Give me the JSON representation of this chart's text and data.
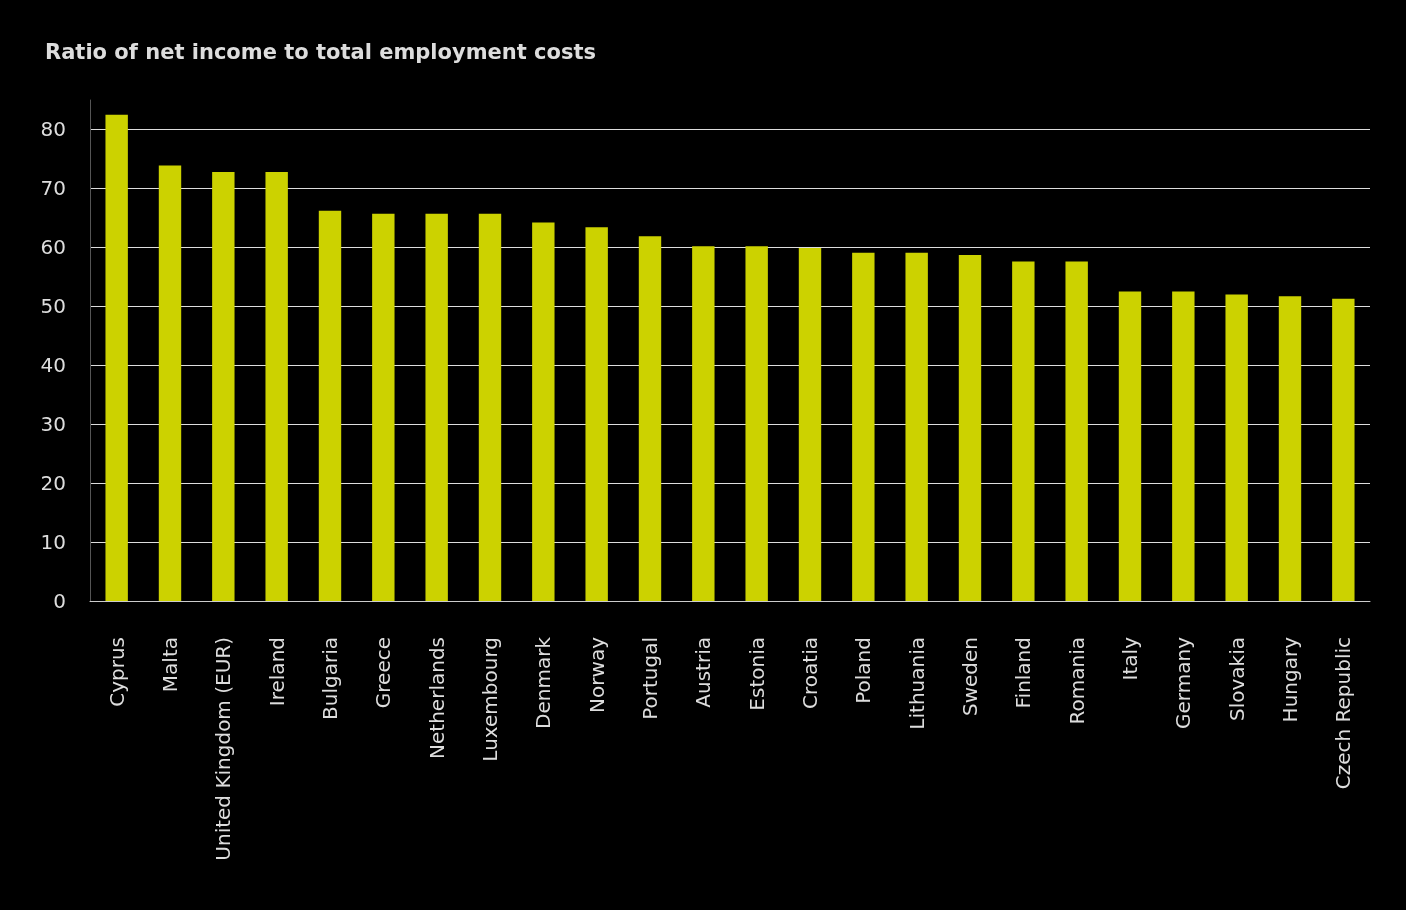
{
  "chart_data": {
    "type": "bar",
    "title": "Ratio of net income to total employment costs",
    "categories": [
      "Cyprus",
      "Malta",
      "United Kingdom (EUR)",
      "Ireland",
      "Bulgaria",
      "Greece",
      "Netherlands",
      "Luxembourg",
      "Denmark",
      "Norway",
      "Portugal",
      "Austria",
      "Estonia",
      "Croatia",
      "Poland",
      "Lithuania",
      "Sweden",
      "Finland",
      "Romania",
      "Italy",
      "Germany",
      "Slovakia",
      "Hungary",
      "Czech Republic"
    ],
    "values": [
      82.5,
      73.9,
      72.8,
      72.8,
      66.2,
      65.7,
      65.7,
      65.7,
      64.2,
      63.4,
      61.9,
      60.2,
      60.2,
      59.9,
      59.1,
      59.1,
      58.7,
      57.6,
      57.6,
      52.5,
      52.5,
      52.0,
      51.7,
      51.3
    ],
    "color": "#ccd200",
    "ylim": [
      0,
      85
    ],
    "yticks": [
      0,
      10,
      20,
      30,
      40,
      50,
      60,
      70,
      80
    ],
    "grid": "y"
  }
}
